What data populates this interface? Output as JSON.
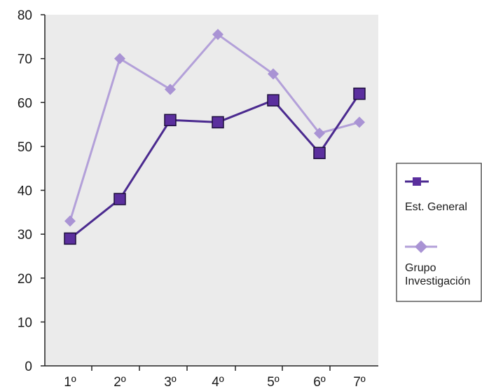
{
  "chart_data": {
    "type": "line",
    "title": "",
    "xlabel": "",
    "ylabel": "",
    "categories": [
      "1º",
      "2º",
      "3º",
      "4º",
      "5º",
      "6º",
      "7º"
    ],
    "ylim": [
      0,
      80
    ],
    "yticks": [
      0,
      10,
      20,
      30,
      40,
      50,
      60,
      70,
      80
    ],
    "grid": false,
    "plot_background": "#ebebeb",
    "legend_position": "right",
    "series": [
      {
        "name": "Est. General",
        "marker": "square",
        "color": "#4b2a8f",
        "marker_color": "#5b2f9e",
        "values": [
          29,
          38,
          56,
          55.5,
          60.5,
          48.5,
          62
        ]
      },
      {
        "name": "Grupo Investigación",
        "label_lines": [
          "Grupo",
          "Investigación"
        ],
        "marker": "diamond",
        "color": "#b3a0d9",
        "marker_color": "#a993d4",
        "values": [
          33,
          70,
          63,
          75.5,
          66.5,
          53,
          55.5
        ]
      }
    ]
  }
}
